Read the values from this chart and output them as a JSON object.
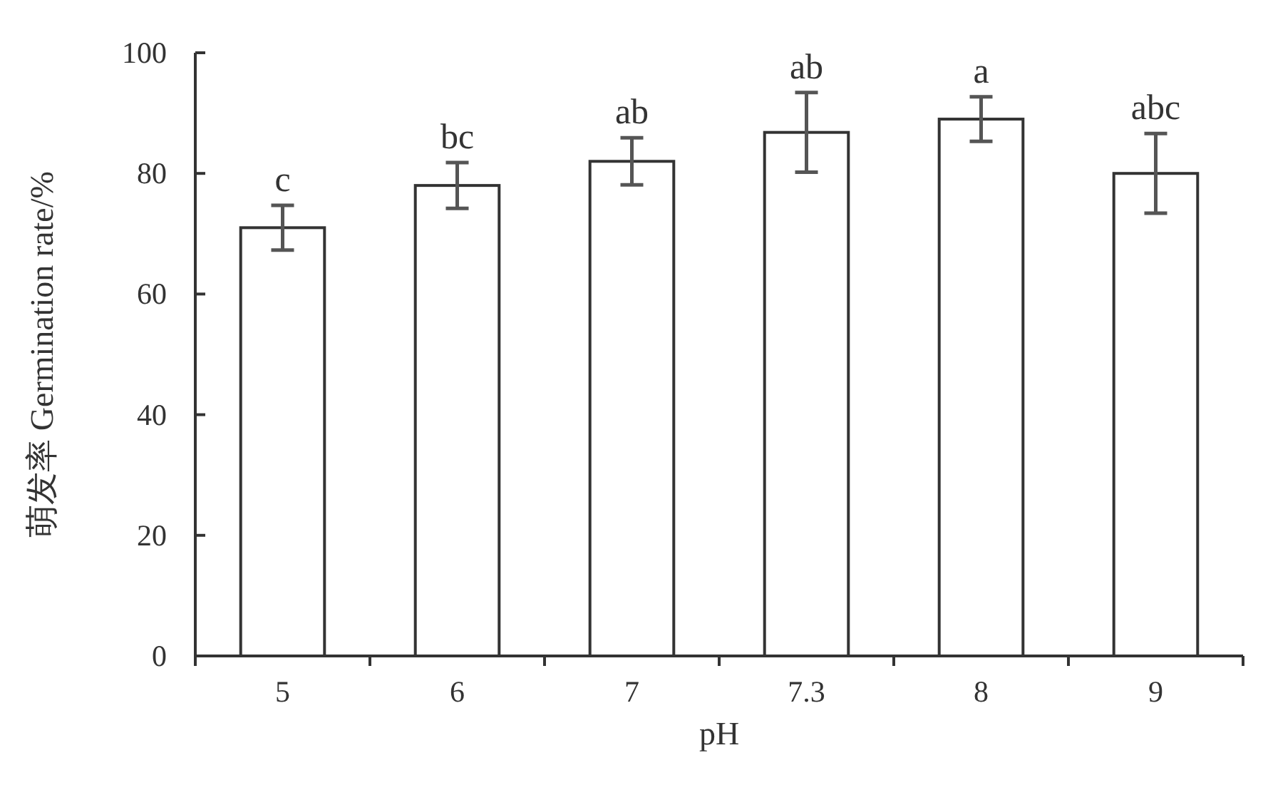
{
  "chart_data": {
    "type": "bar",
    "xlabel": "pH",
    "ylabel": "萌发率 Germination rate/%",
    "categories": [
      "5",
      "6",
      "7",
      "7.3",
      "8",
      "9"
    ],
    "values": [
      71,
      78,
      82,
      86.8,
      89,
      80
    ],
    "errors": [
      3.7,
      3.8,
      3.9,
      6.6,
      3.7,
      6.6
    ],
    "color": "#ffffff",
    "ylim": [
      0,
      100
    ],
    "yticks": [
      0,
      20,
      40,
      60,
      80,
      100
    ],
    "grid": false,
    "annotations": [
      {
        "text": "c",
        "x": "5",
        "y": 74.7
      },
      {
        "text": "bc",
        "x": "6",
        "y": 81.8
      },
      {
        "text": "ab",
        "x": "7",
        "y": 85.9
      },
      {
        "text": "ab",
        "x": "7.3",
        "y": 93.4
      },
      {
        "text": "a",
        "x": "8",
        "y": 92.7
      },
      {
        "text": "abc",
        "x": "9",
        "y": 86.6
      }
    ]
  }
}
